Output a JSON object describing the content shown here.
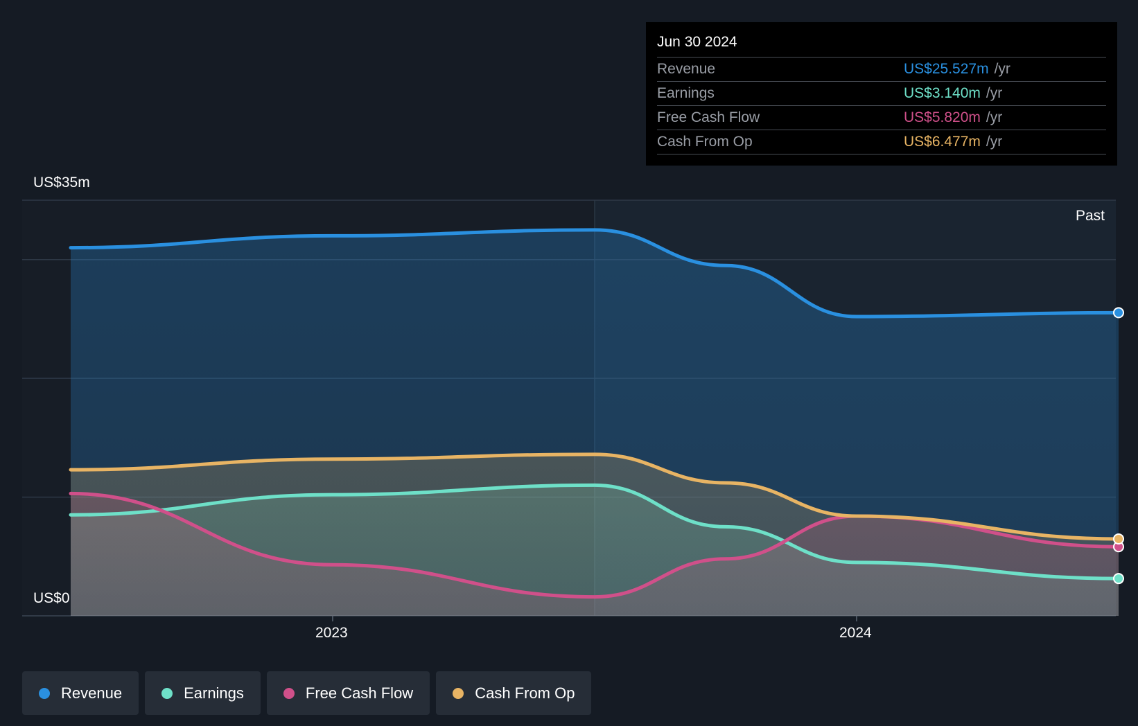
{
  "chart_data": {
    "type": "area",
    "y_axis": {
      "min_label": "US$0",
      "max_label": "US$35m",
      "ylim": [
        0,
        35
      ]
    },
    "x_ticks": [
      {
        "label": "2023",
        "value": 2023.0
      },
      {
        "label": "2024",
        "value": 2024.0
      }
    ],
    "past_label": "Past",
    "x": [
      2022.5,
      2023.0,
      2023.5,
      2023.75,
      2024.0,
      2024.5
    ],
    "series": [
      {
        "name": "Revenue",
        "color": "#2a90e0",
        "values": [
          31.0,
          32.0,
          32.5,
          29.5,
          25.2,
          25.527
        ]
      },
      {
        "name": "Earnings",
        "color": "#6ee0c8",
        "values": [
          8.5,
          10.2,
          11.0,
          7.5,
          4.5,
          3.14
        ]
      },
      {
        "name": "Free Cash Flow",
        "color": "#d0508a",
        "values": [
          10.3,
          4.3,
          1.6,
          4.8,
          8.4,
          5.82
        ]
      },
      {
        "name": "Cash From Op",
        "color": "#e8b464",
        "values": [
          12.3,
          13.2,
          13.6,
          11.2,
          8.4,
          6.477
        ]
      }
    ]
  },
  "tooltip": {
    "date": "Jun 30 2024",
    "unit": "/yr",
    "rows": [
      {
        "label": "Revenue",
        "value": "US$25.527m"
      },
      {
        "label": "Earnings",
        "value": "US$3.140m"
      },
      {
        "label": "Free Cash Flow",
        "value": "US$5.820m"
      },
      {
        "label": "Cash From Op",
        "value": "US$6.477m"
      }
    ]
  },
  "legend": [
    {
      "label": "Revenue",
      "color": "#2a90e0"
    },
    {
      "label": "Earnings",
      "color": "#6ee0c8"
    },
    {
      "label": "Free Cash Flow",
      "color": "#d0508a"
    },
    {
      "label": "Cash From Op",
      "color": "#e8b464"
    }
  ]
}
